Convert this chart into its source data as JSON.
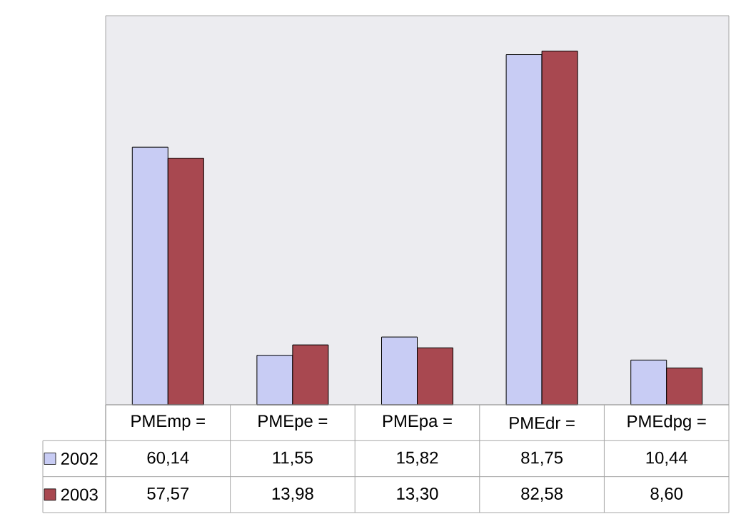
{
  "chart_data": {
    "type": "bar",
    "categories": [
      "PMEmp =",
      "PMEpe =",
      "PMEpa =",
      "PMEdr =",
      "PMEdpg ="
    ],
    "series": [
      {
        "name": "2002",
        "color": "#c8ccf4",
        "values": [
          60.14,
          11.55,
          15.82,
          81.75,
          10.44
        ],
        "value_labels": [
          "60,14",
          "11,55",
          "15,82",
          "81,75",
          "10,44"
        ]
      },
      {
        "name": "2003",
        "color": "#a84850",
        "values": [
          57.57,
          13.98,
          13.3,
          82.58,
          8.6
        ],
        "value_labels": [
          "57,57",
          "13,98",
          "13,30",
          "82,58",
          "8,60"
        ]
      }
    ],
    "legend": "bottom left"
  }
}
